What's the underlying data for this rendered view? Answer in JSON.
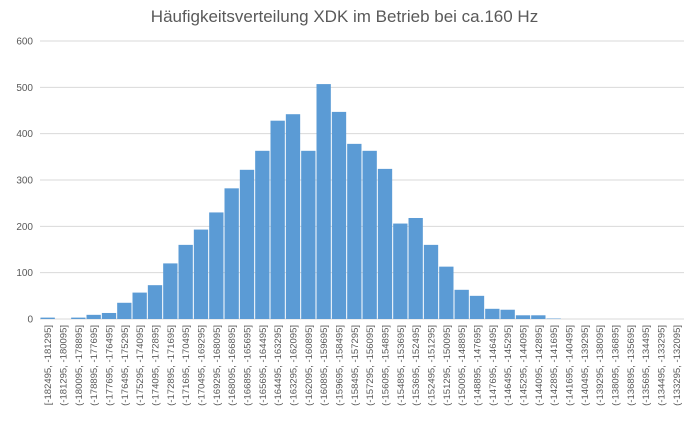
{
  "chart_data": {
    "type": "bar",
    "title": "Häufigkeitsverteilung XDK im Betrieb bei ca.160 Hz",
    "xlabel": "",
    "ylabel": "",
    "ylim": [
      0,
      600
    ],
    "yticks": [
      0,
      100,
      200,
      300,
      400,
      500,
      600
    ],
    "grid": true,
    "legend": "none",
    "bar_color": "#5b9bd5",
    "categories": [
      "[-182495, -181295]",
      "(-181295, -180095]",
      "(-180095, -178895]",
      "(-178895, -177695]",
      "(-177695, -176495]",
      "(-176495, -175295]",
      "(-175295, -174095]",
      "(-174095, -172895]",
      "(-172895, -171695]",
      "(-171695, -170495]",
      "(-170495, -169295]",
      "(-169295, -168095]",
      "(-168095, -166895]",
      "(-166895, -165695]",
      "(-165695, -164495]",
      "(-164495, -163295]",
      "(-163295, -162095]",
      "(-162095, -160895]",
      "(-160895, -159695]",
      "(-159695, -158495]",
      "(-158495, -157295]",
      "(-157295, -156095]",
      "(-156095, -154895]",
      "(-154895, -153695]",
      "(-153695, -152495]",
      "(-152495, -151295]",
      "(-151295, -150095]",
      "(-150095, -148895]",
      "(-148895, -147695]",
      "(-147695, -146495]",
      "(-146495, -145295]",
      "(-145295, -144095]",
      "(-144095, -142895]",
      "(-142895, -141695]",
      "(-141695, -140495]",
      "(-140495, -139295]",
      "(-139295, -138095]",
      "(-138095, -136895]",
      "(-136895, -135695]",
      "(-135695, -134495]",
      "(-134495, -133295]",
      "(-133295, -132095]"
    ],
    "values": [
      3,
      0,
      3,
      9,
      13,
      35,
      57,
      73,
      120,
      160,
      193,
      230,
      282,
      322,
      363,
      428,
      442,
      363,
      507,
      447,
      378,
      363,
      324,
      206,
      218,
      160,
      113,
      63,
      50,
      22,
      20,
      8,
      8,
      1,
      0,
      0,
      0,
      0,
      0,
      0,
      0,
      0
    ]
  }
}
